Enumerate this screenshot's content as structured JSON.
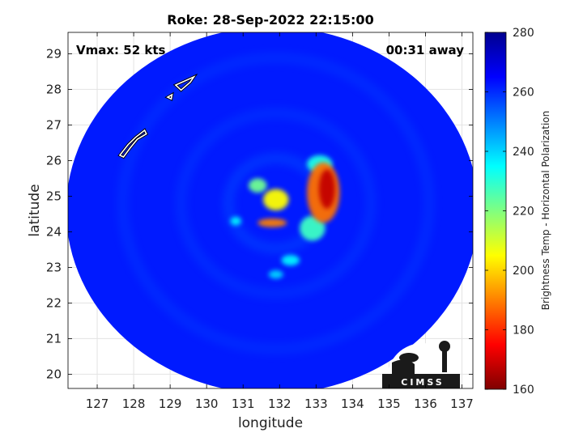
{
  "chart_data": {
    "type": "heatmap",
    "title": "Roke: 28-Sep-2022 22:15:00",
    "annotations": {
      "vmax": "Vmax: 52 kts",
      "away": "00:31 away"
    },
    "xlabel": "longitude",
    "ylabel": "latitude",
    "xlim": [
      126.2,
      137.3
    ],
    "ylim": [
      19.6,
      29.6
    ],
    "xticks": [
      127,
      128,
      129,
      130,
      131,
      132,
      133,
      134,
      135,
      136,
      137
    ],
    "yticks": [
      20,
      21,
      22,
      23,
      24,
      25,
      26,
      27,
      28,
      29
    ],
    "grid": true,
    "swath": {
      "center_lon": 131.8,
      "center_lat": 24.6,
      "radius_lon": 5.65,
      "radius_lat": 5.15
    },
    "storm_center": {
      "lon": 131.9,
      "lat": 24.8
    },
    "background_value": 262,
    "features": [
      {
        "name": "eyewall-east",
        "lon": 133.3,
        "lat": 25.2,
        "value": 168,
        "rx_deg": 0.22,
        "ry_deg": 0.55
      },
      {
        "name": "eyewall-east-outer",
        "lon": 133.2,
        "lat": 25.1,
        "value": 188,
        "rx_deg": 0.45,
        "ry_deg": 0.85
      },
      {
        "name": "core-center",
        "lon": 131.9,
        "lat": 24.9,
        "value": 205,
        "rx_deg": 0.35,
        "ry_deg": 0.3
      },
      {
        "name": "core-south",
        "lon": 131.8,
        "lat": 24.25,
        "value": 190,
        "rx_deg": 0.4,
        "ry_deg": 0.12
      },
      {
        "name": "band-west",
        "lon": 131.4,
        "lat": 25.3,
        "value": 222,
        "rx_deg": 0.25,
        "ry_deg": 0.2
      },
      {
        "name": "band-northeast",
        "lon": 133.1,
        "lat": 25.9,
        "value": 232,
        "rx_deg": 0.35,
        "ry_deg": 0.25
      },
      {
        "name": "band-southeast",
        "lon": 132.9,
        "lat": 24.1,
        "value": 228,
        "rx_deg": 0.35,
        "ry_deg": 0.35
      },
      {
        "name": "band-south",
        "lon": 132.3,
        "lat": 23.2,
        "value": 236,
        "rx_deg": 0.25,
        "ry_deg": 0.15
      },
      {
        "name": "band-tail",
        "lon": 131.9,
        "lat": 22.8,
        "value": 240,
        "rx_deg": 0.2,
        "ry_deg": 0.12
      },
      {
        "name": "west-cell",
        "lon": 130.8,
        "lat": 24.3,
        "value": 236,
        "rx_deg": 0.15,
        "ry_deg": 0.12
      }
    ],
    "colorbar": {
      "label": "Brightness Temp - Horizontal Polarization",
      "range": [
        160,
        280
      ],
      "ticks": [
        160,
        180,
        200,
        220,
        240,
        260,
        280
      ],
      "colormap": [
        "#7f0000",
        "#ff0000",
        "#ff8000",
        "#ffff00",
        "#80ff80",
        "#00ffff",
        "#0080ff",
        "#0000ff",
        "#00008f"
      ]
    },
    "coastlines": [
      {
        "name": "island-north",
        "lon_lat": [
          [
            129.15,
            28.12
          ],
          [
            129.65,
            28.35
          ],
          [
            129.55,
            28.2
          ],
          [
            129.3,
            27.98
          ],
          [
            129.15,
            28.12
          ]
        ]
      },
      {
        "name": "island-small",
        "lon_lat": [
          [
            128.93,
            27.78
          ],
          [
            129.05,
            27.85
          ],
          [
            129.03,
            27.73
          ],
          [
            128.93,
            27.78
          ]
        ]
      },
      {
        "name": "okinawa-chain",
        "lon_lat": [
          [
            127.62,
            26.15
          ],
          [
            127.85,
            26.45
          ],
          [
            128.05,
            26.65
          ],
          [
            128.3,
            26.85
          ],
          [
            128.35,
            26.75
          ],
          [
            128.1,
            26.6
          ],
          [
            127.9,
            26.35
          ],
          [
            127.72,
            26.1
          ],
          [
            127.62,
            26.15
          ]
        ]
      }
    ]
  },
  "logo": {
    "text": "CIMSS"
  }
}
